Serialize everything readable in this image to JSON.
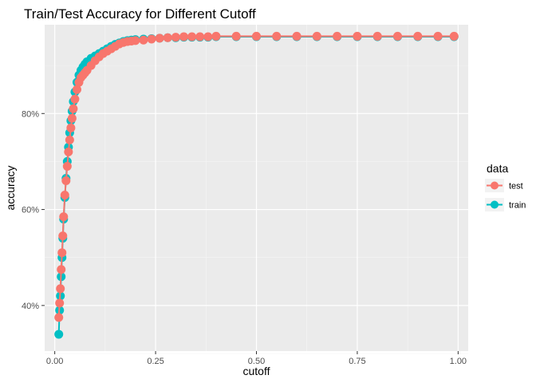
{
  "chart_data": {
    "type": "line",
    "title": "Train/Test Accuracy for Different Cutoff",
    "xlabel": "cutoff",
    "ylabel": "accuracy",
    "xlim": [
      -0.025,
      1.025
    ],
    "ylim": [
      0.305,
      0.985
    ],
    "x_ticks": [
      0.0,
      0.25,
      0.5,
      0.75,
      1.0
    ],
    "x_tick_labels": [
      "0.00",
      "0.25",
      "0.50",
      "0.75",
      "1.00"
    ],
    "y_ticks": [
      0.4,
      0.6,
      0.8
    ],
    "y_tick_labels": [
      "40%",
      "60%",
      "80%"
    ],
    "grid": true,
    "legend": {
      "title": "data",
      "placement": "right"
    },
    "series": [
      {
        "name": "test",
        "color": "#F8766D",
        "x": [
          0.01,
          0.012,
          0.014,
          0.016,
          0.018,
          0.02,
          0.022,
          0.025,
          0.028,
          0.031,
          0.034,
          0.037,
          0.04,
          0.043,
          0.046,
          0.05,
          0.055,
          0.06,
          0.065,
          0.07,
          0.075,
          0.08,
          0.09,
          0.1,
          0.11,
          0.12,
          0.13,
          0.14,
          0.15,
          0.16,
          0.17,
          0.18,
          0.19,
          0.2,
          0.22,
          0.24,
          0.26,
          0.28,
          0.3,
          0.32,
          0.34,
          0.36,
          0.38,
          0.4,
          0.45,
          0.5,
          0.55,
          0.6,
          0.65,
          0.7,
          0.75,
          0.8,
          0.85,
          0.9,
          0.95,
          0.99
        ],
        "y": [
          0.375,
          0.405,
          0.435,
          0.475,
          0.51,
          0.545,
          0.585,
          0.63,
          0.66,
          0.69,
          0.72,
          0.745,
          0.77,
          0.79,
          0.81,
          0.83,
          0.85,
          0.865,
          0.875,
          0.88,
          0.885,
          0.89,
          0.9,
          0.91,
          0.918,
          0.925,
          0.93,
          0.935,
          0.94,
          0.945,
          0.948,
          0.95,
          0.951,
          0.952,
          0.953,
          0.955,
          0.957,
          0.958,
          0.959,
          0.96,
          0.96,
          0.96,
          0.96,
          0.961,
          0.961,
          0.961,
          0.961,
          0.961,
          0.961,
          0.961,
          0.961,
          0.961,
          0.961,
          0.961,
          0.961,
          0.961
        ]
      },
      {
        "name": "train",
        "color": "#00BFC4",
        "x": [
          0.01,
          0.012,
          0.014,
          0.016,
          0.018,
          0.02,
          0.022,
          0.025,
          0.028,
          0.031,
          0.034,
          0.037,
          0.04,
          0.043,
          0.046,
          0.05,
          0.055,
          0.06,
          0.065,
          0.07,
          0.075,
          0.08,
          0.09,
          0.1,
          0.11,
          0.12,
          0.13,
          0.14,
          0.15,
          0.16,
          0.17,
          0.18,
          0.19,
          0.2,
          0.22,
          0.24,
          0.26,
          0.28,
          0.3,
          0.32,
          0.34,
          0.36,
          0.38,
          0.4,
          0.45,
          0.5,
          0.55,
          0.6,
          0.65,
          0.7,
          0.75,
          0.8,
          0.85,
          0.9,
          0.95,
          0.99
        ],
        "y": [
          0.34,
          0.39,
          0.42,
          0.46,
          0.5,
          0.54,
          0.58,
          0.625,
          0.665,
          0.7,
          0.73,
          0.76,
          0.785,
          0.805,
          0.825,
          0.845,
          0.865,
          0.88,
          0.89,
          0.897,
          0.903,
          0.908,
          0.915,
          0.92,
          0.925,
          0.93,
          0.935,
          0.94,
          0.944,
          0.947,
          0.95,
          0.952,
          0.953,
          0.954,
          0.955,
          0.956,
          0.957,
          0.958,
          0.958,
          0.959,
          0.959,
          0.959,
          0.959,
          0.96,
          0.96,
          0.96,
          0.96,
          0.96,
          0.96,
          0.96,
          0.96,
          0.96,
          0.96,
          0.96,
          0.96,
          0.96
        ]
      }
    ]
  }
}
